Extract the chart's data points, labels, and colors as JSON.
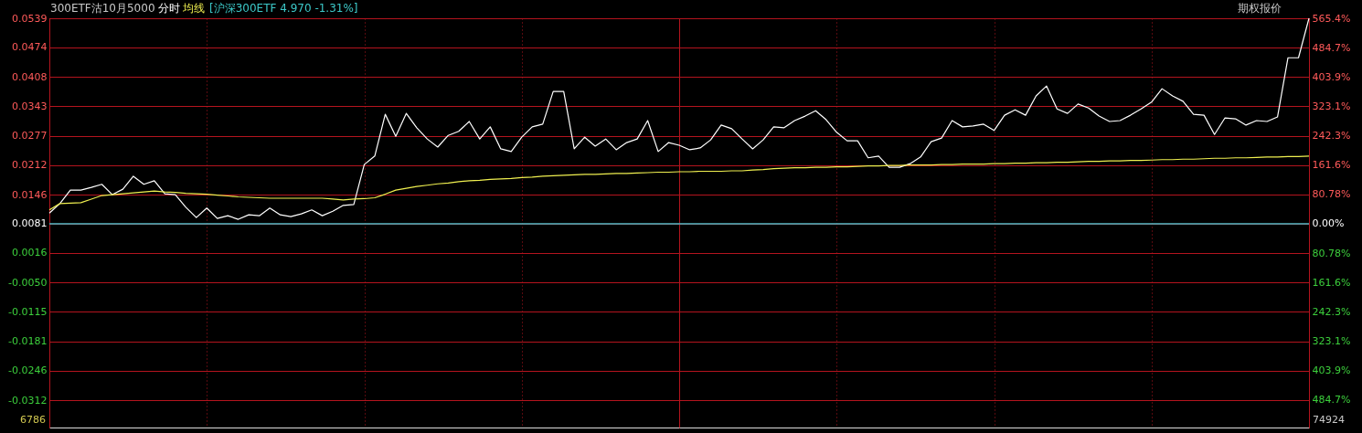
{
  "chart_data": {
    "type": "line",
    "title": "300ETF沽10月5000",
    "annotations": [
      "[沪深300ETF 4.970 -1.31%]",
      "期权报价",
      "6786",
      "74924"
    ],
    "categories": [
      null,
      null,
      null,
      null,
      null,
      null,
      null,
      null,
      null,
      null,
      null,
      null,
      null,
      null,
      null,
      null,
      null,
      null,
      null,
      null,
      null,
      null,
      null,
      null,
      null,
      null,
      null,
      null,
      null,
      null,
      null,
      null,
      null,
      null,
      null,
      null,
      null,
      null,
      null,
      null,
      null,
      null,
      null,
      null,
      null,
      null,
      null,
      null,
      null,
      null,
      null,
      null,
      null,
      null,
      null,
      null,
      null,
      null,
      null,
      null,
      null,
      null,
      null,
      null,
      null,
      null,
      null,
      null,
      null,
      null,
      null,
      null,
      null,
      null,
      null,
      null,
      null,
      null,
      null,
      null,
      null,
      null,
      null,
      null,
      null,
      null,
      null,
      null,
      null,
      null,
      null,
      null,
      null,
      null,
      null,
      null,
      null,
      null,
      null,
      null,
      null,
      null,
      null,
      null,
      null,
      null,
      null,
      null,
      null,
      null,
      null,
      null,
      null,
      null,
      null,
      null,
      null,
      null,
      null,
      null,
      null
    ],
    "ylim": [
      -0.0373,
      0.0539
    ],
    "yticks": [
      0.0539,
      0.0474,
      0.0408,
      0.0343,
      0.0277,
      0.0212,
      0.0146,
      0.0081,
      0.0016,
      {
        "value": -0.005,
        "label": "-0.0050"
      },
      -0.0115,
      -0.0181,
      -0.0246,
      -0.0312
    ],
    "y2lim": [
      -560.5,
      565.4
    ],
    "y2ticks": [
      {
        "value": 565.4,
        "label": "565.4%"
      },
      {
        "value": 484.7,
        "label": "484.7%"
      },
      {
        "value": 403.9,
        "label": "403.9%"
      },
      {
        "value": 323.1,
        "label": "323.1%"
      },
      {
        "value": 242.3,
        "label": "242.3%"
      },
      {
        "value": 161.6,
        "label": "161.6%"
      },
      {
        "value": 80.78,
        "label": "80.78%"
      },
      {
        "value": 0,
        "label": "0.00%"
      },
      {
        "value": -80.78,
        "label": "80.78%"
      },
      {
        "value": -161.6,
        "label": "161.6%"
      },
      {
        "value": -242.3,
        "label": "242.3%"
      },
      {
        "value": -323.1,
        "label": "323.1%"
      },
      {
        "value": -403.9,
        "label": "403.9%"
      },
      {
        "value": -484.7,
        "label": "484.7%"
      }
    ],
    "grid": true,
    "marker": "none",
    "line_style": "solid",
    "ref_lines": [
      {
        "axis": "y",
        "value": 0.0081,
        "label": null,
        "color": "#4fb8c4"
      }
    ],
    "series": [
      {
        "name": "分时",
        "color": "#ffffff",
        "values": [
          0.0105,
          0.0126,
          0.0156,
          0.0156,
          0.0162,
          0.0169,
          0.0146,
          0.0158,
          0.0187,
          0.0169,
          0.0177,
          0.0148,
          0.0146,
          0.0118,
          0.0095,
          0.0116,
          0.0093,
          0.0099,
          0.0091,
          0.0101,
          0.0099,
          0.0116,
          0.0101,
          0.0097,
          0.0103,
          0.0112,
          0.0099,
          0.0109,
          0.0122,
          0.0124,
          0.0213,
          0.0232,
          0.0325,
          0.0276,
          0.0327,
          0.0295,
          0.027,
          0.0252,
          0.0278,
          0.0287,
          0.0309,
          0.027,
          0.0297,
          0.0248,
          0.0242,
          0.0274,
          0.0297,
          0.0303,
          0.0376,
          0.0376,
          0.0248,
          0.0274,
          0.0254,
          0.027,
          0.0246,
          0.0262,
          0.027,
          0.0311,
          0.0242,
          0.0262,
          0.0256,
          0.0246,
          0.025,
          0.0268,
          0.0301,
          0.0293,
          0.027,
          0.0248,
          0.0268,
          0.0297,
          0.0295,
          0.0311,
          0.0321,
          0.0333,
          0.0313,
          0.0285,
          0.0266,
          0.0266,
          0.0228,
          0.0232,
          0.0207,
          0.0207,
          0.0215,
          0.023,
          0.0264,
          0.0272,
          0.0311,
          0.0297,
          0.0299,
          0.0303,
          0.0289,
          0.0323,
          0.0335,
          0.0323,
          0.0366,
          0.0388,
          0.0337,
          0.0327,
          0.0348,
          0.0339,
          0.0321,
          0.0309,
          0.0311,
          0.0323,
          0.0337,
          0.0352,
          0.0382,
          0.0366,
          0.0354,
          0.0325,
          0.0323,
          0.028,
          0.0317,
          0.0315,
          0.0301,
          0.0311,
          0.0309,
          0.0319,
          0.0451,
          0.0451,
          0.0539
        ]
      },
      {
        "name": "均线",
        "color": "#f0f050",
        "values": [
          0.0112,
          0.0126,
          0.0127,
          0.0128,
          0.0136,
          0.0144,
          0.0146,
          0.0148,
          0.015,
          0.0152,
          0.0154,
          0.0152,
          0.0151,
          0.0149,
          0.0148,
          0.0147,
          0.0145,
          0.0143,
          0.0141,
          0.014,
          0.0139,
          0.0138,
          0.0138,
          0.0138,
          0.0138,
          0.0138,
          0.0138,
          0.0136,
          0.0134,
          0.0136,
          0.0137,
          0.0139,
          0.0147,
          0.0156,
          0.016,
          0.0164,
          0.0167,
          0.017,
          0.0172,
          0.0175,
          0.0177,
          0.0178,
          0.018,
          0.0181,
          0.0182,
          0.0184,
          0.0185,
          0.0187,
          0.0188,
          0.0189,
          0.019,
          0.0191,
          0.0191,
          0.0192,
          0.0193,
          0.0193,
          0.0194,
          0.0195,
          0.0196,
          0.0196,
          0.0197,
          0.0197,
          0.0198,
          0.0198,
          0.0198,
          0.0199,
          0.0199,
          0.0201,
          0.0202,
          0.0204,
          0.0205,
          0.0206,
          0.0206,
          0.0207,
          0.0207,
          0.0208,
          0.0208,
          0.0209,
          0.021,
          0.021,
          0.0211,
          0.0211,
          0.0212,
          0.0212,
          0.0212,
          0.0213,
          0.0213,
          0.0214,
          0.0214,
          0.0214,
          0.0215,
          0.0215,
          0.0216,
          0.0216,
          0.0217,
          0.0217,
          0.0218,
          0.0218,
          0.0219,
          0.022,
          0.022,
          0.0221,
          0.0221,
          0.0222,
          0.0222,
          0.0223,
          0.0224,
          0.0224,
          0.0225,
          0.0225,
          0.0226,
          0.0227,
          0.0227,
          0.0228,
          0.0228,
          0.0229,
          0.023,
          0.023,
          0.0231,
          0.0231,
          0.0232
        ]
      }
    ]
  }
}
